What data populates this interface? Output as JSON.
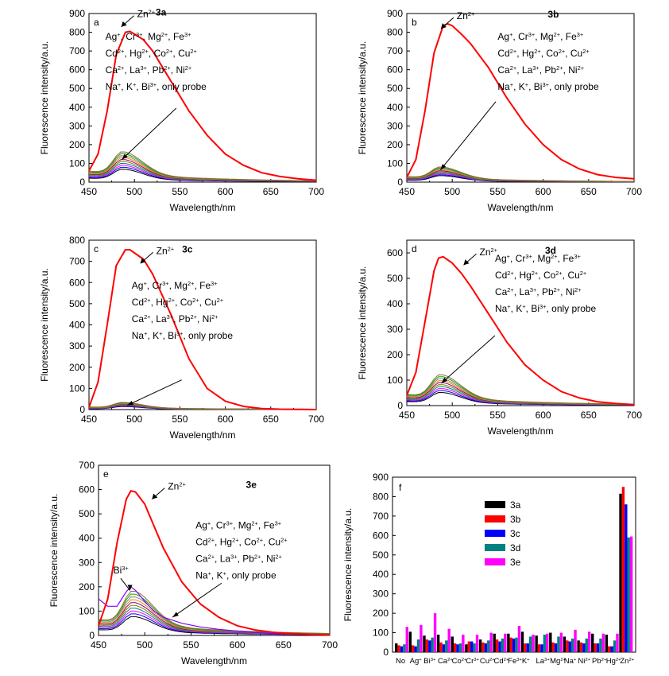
{
  "panels": [
    {
      "id": "a",
      "letter": "a",
      "compound": "3a",
      "xlabel": "Wavelength/nm",
      "ylabel": "Fluorescence intensity/a.u.",
      "xlim": [
        450,
        700
      ],
      "ylim": [
        0,
        900
      ],
      "xticks": [
        450,
        500,
        550,
        600,
        650,
        700
      ],
      "yticks": [
        0,
        100,
        200,
        300,
        400,
        500,
        600,
        700,
        800,
        900
      ],
      "zn_label": "Zn",
      "zn_sup": "2+",
      "ion_lines": [
        [
          [
            "Ag",
            "+"
          ],
          [
            "Cr",
            "3+"
          ],
          [
            "Mg",
            "2+"
          ],
          [
            "Fe",
            "3+"
          ]
        ],
        [
          [
            "Cd",
            "2+"
          ],
          [
            "Hg",
            "2+"
          ],
          [
            "Co",
            "2+"
          ],
          [
            "Cu",
            "2+"
          ]
        ],
        [
          [
            "Ca",
            "2+"
          ],
          [
            "La",
            "3+"
          ],
          [
            "Pb",
            "2+"
          ],
          [
            "Ni",
            "2+"
          ]
        ],
        [
          [
            "Na",
            "+"
          ],
          [
            "K",
            "+"
          ],
          [
            "Bi",
            "3+"
          ]
        ]
      ],
      "tail_text": "only probe",
      "zn_series": {
        "x": [
          450,
          460,
          470,
          480,
          490,
          495,
          500,
          510,
          520,
          540,
          560,
          580,
          600,
          620,
          640,
          660,
          680,
          700
        ],
        "y": [
          60,
          150,
          380,
          680,
          800,
          805,
          790,
          760,
          700,
          540,
          380,
          250,
          150,
          90,
          50,
          30,
          18,
          10
        ]
      },
      "low_peak": 120,
      "ions_label_box": [
        468,
        760
      ],
      "arrow_tip": [
        486,
        120
      ],
      "arrow_tail": [
        546,
        395
      ],
      "zn_text_at": [
        503,
        880
      ]
    },
    {
      "id": "b",
      "letter": "b",
      "compound": "3b",
      "xlabel": "Wavelength/nm",
      "ylabel": "Fluorescence intensity/a.u.",
      "xlim": [
        450,
        700
      ],
      "ylim": [
        0,
        900
      ],
      "xticks": [
        450,
        500,
        550,
        600,
        650,
        700
      ],
      "yticks": [
        0,
        100,
        200,
        300,
        400,
        500,
        600,
        700,
        800,
        900
      ],
      "zn_label": "Zn",
      "zn_sup": "2+",
      "ion_lines": [
        [
          [
            "Ag",
            "+"
          ],
          [
            "Cr",
            "3+"
          ],
          [
            "Mg",
            "2+"
          ],
          [
            "Fe",
            "3+"
          ]
        ],
        [
          [
            "Cd",
            "2+"
          ],
          [
            "Hg",
            "2+"
          ],
          [
            "Co",
            "2+"
          ],
          [
            "Cu",
            "2+"
          ]
        ],
        [
          [
            "Ca",
            "2+"
          ],
          [
            "La",
            "3+"
          ],
          [
            "Pb",
            "2+"
          ],
          [
            "Ni",
            "2+"
          ]
        ],
        [
          [
            "Na",
            "+"
          ],
          [
            "K",
            "+"
          ],
          [
            "Bi",
            "3+"
          ]
        ]
      ],
      "tail_text": "only probe",
      "zn_series": {
        "x": [
          450,
          460,
          470,
          480,
          490,
          495,
          500,
          510,
          520,
          540,
          560,
          580,
          600,
          620,
          640,
          660,
          680,
          700
        ],
        "y": [
          25,
          120,
          380,
          690,
          835,
          845,
          835,
          790,
          740,
          610,
          450,
          310,
          200,
          120,
          70,
          40,
          25,
          18
        ]
      },
      "low_peak": 60,
      "ions_label_box": [
        550,
        760
      ],
      "arrow_tip": [
        487,
        65
      ],
      "arrow_tail": [
        548,
        430
      ],
      "zn_text_at": [
        505,
        870
      ]
    },
    {
      "id": "c",
      "letter": "c",
      "compound": "3c",
      "xlabel": "Wavelength/nm",
      "ylabel": "Fluorescence intensity/a.u.",
      "xlim": [
        450,
        700
      ],
      "ylim": [
        0,
        800
      ],
      "xticks": [
        450,
        500,
        550,
        600,
        650,
        700
      ],
      "yticks": [
        0,
        100,
        200,
        300,
        400,
        500,
        600,
        700,
        800
      ],
      "zn_label": "Zn",
      "zn_sup": "2+",
      "ion_lines": [
        [
          [
            "Ag",
            "+"
          ],
          [
            "Cr",
            "3+"
          ],
          [
            "Mg",
            "2+"
          ],
          [
            "Fe",
            "3+"
          ]
        ],
        [
          [
            "Cd",
            "2+"
          ],
          [
            "Hg",
            "2+"
          ],
          [
            "Co",
            "2+"
          ],
          [
            "Cu",
            "2+"
          ]
        ],
        [
          [
            "Ca",
            "2+"
          ],
          [
            "La",
            "3+"
          ],
          [
            "Pb",
            "2+"
          ],
          [
            "Ni",
            "2+"
          ]
        ],
        [
          [
            "Na",
            "+"
          ],
          [
            "K",
            "+"
          ],
          [
            "Bi",
            "3+"
          ]
        ]
      ],
      "tail_text": "only probe",
      "zn_series": {
        "x": [
          450,
          460,
          470,
          480,
          490,
          495,
          500,
          510,
          520,
          540,
          560,
          580,
          600,
          620,
          640,
          660,
          680,
          700
        ],
        "y": [
          10,
          130,
          400,
          680,
          755,
          755,
          740,
          710,
          640,
          450,
          240,
          100,
          40,
          15,
          5,
          2,
          1,
          0
        ]
      },
      "low_peak": 25,
      "ions_label_box": [
        497,
        570
      ],
      "arrow_tip": [
        492,
        20
      ],
      "arrow_tail": [
        552,
        140
      ],
      "zn_text_at": [
        524,
        735
      ]
    },
    {
      "id": "d",
      "letter": "d",
      "compound": "3d",
      "xlabel": "Wavelength/nm",
      "ylabel": "Fluorescence intensity/a.u.",
      "xlim": [
        450,
        700
      ],
      "ylim": [
        0,
        650
      ],
      "xticks": [
        450,
        500,
        550,
        600,
        650,
        700
      ],
      "yticks": [
        0,
        100,
        200,
        300,
        400,
        500,
        600
      ],
      "zn_label": "Zn",
      "zn_sup": "2+",
      "ion_lines": [
        [
          [
            "Ag",
            "+"
          ],
          [
            "Cr",
            "3+"
          ],
          [
            "Mg",
            "2+"
          ],
          [
            "Fe",
            "3+"
          ]
        ],
        [
          [
            "Cd",
            "2+"
          ],
          [
            "Hg",
            "2+"
          ],
          [
            "Co",
            "2+"
          ],
          [
            "Cu",
            "2+"
          ]
        ],
        [
          [
            "Ca",
            "2+"
          ],
          [
            "La",
            "3+"
          ],
          [
            "Pb",
            "2+"
          ],
          [
            "Ni",
            "2+"
          ]
        ],
        [
          [
            "Na",
            "+"
          ],
          [
            "K",
            "+"
          ],
          [
            "Bi",
            "3+"
          ]
        ]
      ],
      "tail_text": "only probe",
      "zn_series": {
        "x": [
          450,
          460,
          470,
          480,
          485,
          490,
          500,
          510,
          520,
          540,
          560,
          580,
          600,
          620,
          640,
          660,
          680,
          700
        ],
        "y": [
          40,
          130,
          330,
          530,
          580,
          585,
          560,
          520,
          470,
          360,
          250,
          160,
          100,
          55,
          30,
          15,
          8,
          4
        ]
      },
      "low_peak": 90,
      "ions_label_box": [
        547,
        565
      ],
      "arrow_tip": [
        488,
        88
      ],
      "arrow_tail": [
        547,
        275
      ],
      "zn_text_at": [
        530,
        590
      ]
    },
    {
      "id": "e",
      "letter": "e",
      "compound": "3e",
      "xlabel": "Wavelength/nm",
      "ylabel": "Fluorescence intensity/a.u.",
      "xlim": [
        450,
        700
      ],
      "ylim": [
        0,
        700
      ],
      "xticks": [
        450,
        500,
        550,
        600,
        650,
        700
      ],
      "yticks": [
        0,
        100,
        200,
        300,
        400,
        500,
        600,
        700
      ],
      "zn_label": "Zn",
      "zn_sup": "2+",
      "bi_label": "Bi",
      "bi_sup": "3+",
      "ion_lines": [
        [
          [
            "Ag",
            "+"
          ],
          [
            "Cr",
            "3+"
          ],
          [
            "Mg",
            "2+"
          ],
          [
            "Fe",
            "3+"
          ]
        ],
        [
          [
            "Cd",
            "2+"
          ],
          [
            "Hg",
            "2+"
          ],
          [
            "Co",
            "2+"
          ],
          [
            "Cu",
            "2+"
          ]
        ],
        [
          [
            "Ca",
            "2+"
          ],
          [
            "La",
            "3+"
          ],
          [
            "Pb",
            "2+"
          ],
          [
            "Ni",
            "2+"
          ]
        ],
        [
          [
            "Na",
            "+"
          ],
          [
            "K",
            "+"
          ]
        ]
      ],
      "tail_text": "only probe",
      "zn_series": {
        "x": [
          450,
          460,
          470,
          480,
          485,
          490,
          500,
          510,
          520,
          540,
          560,
          580,
          600,
          620,
          640,
          660,
          680,
          700
        ],
        "y": [
          40,
          150,
          380,
          560,
          595,
          590,
          540,
          450,
          360,
          220,
          130,
          75,
          40,
          22,
          12,
          7,
          4,
          2
        ]
      },
      "bi_series": {
        "x": [
          450,
          460,
          470,
          480,
          485,
          490,
          500,
          510,
          520,
          540,
          560,
          580,
          600,
          620,
          640,
          660,
          680,
          700
        ],
        "y": [
          150,
          120,
          120,
          180,
          200,
          185,
          140,
          100,
          75,
          50,
          35,
          25,
          18,
          12,
          8,
          5,
          3,
          2
        ]
      },
      "low_peak": 135,
      "ions_label_box": [
        555,
        440
      ],
      "arrow_tip": [
        530,
        75
      ],
      "arrow_tail": [
        583,
        215
      ],
      "bi_arrow_tip": [
        484,
        185
      ],
      "bi_arrow_tail": [
        474,
        235
      ],
      "bi_text_at": [
        466,
        255
      ],
      "zn_text_at": [
        525,
        600
      ]
    }
  ],
  "chart_data": {
    "type": "bar",
    "panel_letter": "f",
    "ylabel": "Fluorescence intensity/a.u.",
    "ylim": [
      0,
      900
    ],
    "yticks": [
      0,
      100,
      200,
      300,
      400,
      500,
      600,
      700,
      800,
      900
    ],
    "categories": [
      [
        "No",
        ""
      ],
      [
        "Ag",
        "+"
      ],
      [
        "Bi",
        "3+"
      ],
      [
        "Ca",
        "2+"
      ],
      [
        "Co",
        "2+"
      ],
      [
        "Cr",
        "3+"
      ],
      [
        "Cu",
        "2+"
      ],
      [
        "Cd",
        "2+"
      ],
      [
        "Fe",
        "3+"
      ],
      [
        "K",
        "+"
      ],
      [
        "La",
        "3+"
      ],
      [
        "Mg",
        "2+"
      ],
      [
        "Na",
        "+"
      ],
      [
        "Ni",
        "2+"
      ],
      [
        "Pb",
        "2+"
      ],
      [
        "Hg",
        "2+"
      ],
      [
        "Zn",
        "2+"
      ]
    ],
    "series": [
      {
        "name": "3a",
        "color": "#000000",
        "values": [
          45,
          105,
          85,
          90,
          80,
          40,
          65,
          95,
          95,
          105,
          85,
          100,
          80,
          60,
          95,
          90,
          815
        ]
      },
      {
        "name": "3b",
        "color": "#ff0000",
        "values": [
          35,
          35,
          65,
          50,
          45,
          55,
          50,
          65,
          75,
          45,
          40,
          50,
          60,
          50,
          45,
          30,
          850
        ]
      },
      {
        "name": "3c",
        "color": "#0000ff",
        "values": [
          30,
          30,
          60,
          40,
          40,
          55,
          45,
          55,
          70,
          45,
          40,
          45,
          55,
          45,
          45,
          30,
          760
        ]
      },
      {
        "name": "3d",
        "color": "#008080",
        "values": [
          40,
          65,
          75,
          60,
          45,
          45,
          60,
          70,
          75,
          80,
          90,
          80,
          70,
          70,
          70,
          60,
          590
        ]
      },
      {
        "name": "3e",
        "color": "#ff00ff",
        "values": [
          130,
          140,
          200,
          120,
          90,
          90,
          100,
          95,
          135,
          90,
          95,
          100,
          115,
          105,
          95,
          95,
          595
        ]
      }
    ]
  }
}
